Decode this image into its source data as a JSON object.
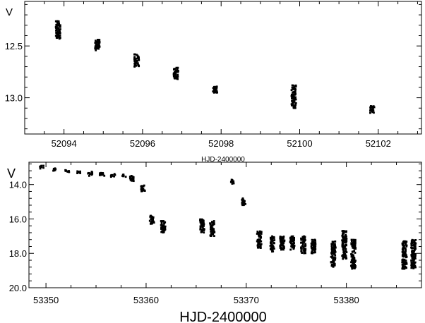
{
  "chart_data": [
    {
      "type": "scatter",
      "ylabel": "V",
      "xlabel": "HJD-2400000",
      "xlim": [
        52093.0,
        52103.1
      ],
      "ylim": [
        13.35,
        12.07
      ],
      "y_inverted": true,
      "xticks": [
        52094,
        52096,
        52098,
        52100,
        52102
      ],
      "yticks": [
        12.5,
        13.0
      ],
      "ytick_labels": [
        "12.5",
        "13.0"
      ],
      "grid": false,
      "clusters": [
        {
          "x": 52093.85,
          "y_top": 12.26,
          "y_bottom": 12.43
        },
        {
          "x": 52094.85,
          "y_top": 12.42,
          "y_bottom": 12.55
        },
        {
          "x": 52095.85,
          "y_top": 12.58,
          "y_bottom": 12.7
        },
        {
          "x": 52096.85,
          "y_top": 12.71,
          "y_bottom": 12.82
        },
        {
          "x": 52097.85,
          "y_top": 12.89,
          "y_bottom": 12.96
        },
        {
          "x": 52099.85,
          "y_top": 12.88,
          "y_bottom": 13.1
        },
        {
          "x": 52101.85,
          "y_top": 13.08,
          "y_bottom": 13.15
        }
      ]
    },
    {
      "type": "scatter",
      "ylabel": "V",
      "xlabel": "HJD-2400000",
      "xlim": [
        53348.3,
        53387.5
      ],
      "ylim": [
        20.0,
        12.7
      ],
      "y_inverted": true,
      "xticks": [
        53350,
        53360,
        53370,
        53380
      ],
      "yticks": [
        14.0,
        16.0,
        18.0,
        20.0
      ],
      "ytick_labels": [
        "14.0",
        "16.0",
        "18.0",
        "20.0"
      ],
      "grid": false,
      "clusters": [
        {
          "x": 53349.6,
          "y_top": 12.9,
          "y_bottom": 13.1
        },
        {
          "x": 53350.9,
          "y_top": 13.05,
          "y_bottom": 13.2
        },
        {
          "x": 53352.1,
          "y_top": 13.15,
          "y_bottom": 13.3
        },
        {
          "x": 53353.3,
          "y_top": 13.2,
          "y_bottom": 13.35
        },
        {
          "x": 53354.4,
          "y_top": 13.25,
          "y_bottom": 13.5
        },
        {
          "x": 53355.6,
          "y_top": 13.3,
          "y_bottom": 13.5
        },
        {
          "x": 53356.7,
          "y_top": 13.35,
          "y_bottom": 13.55
        },
        {
          "x": 53357.8,
          "y_top": 13.4,
          "y_bottom": 13.55
        },
        {
          "x": 53358.6,
          "y_top": 13.5,
          "y_bottom": 13.8
        },
        {
          "x": 53359.7,
          "y_top": 14.05,
          "y_bottom": 14.4
        },
        {
          "x": 53360.6,
          "y_top": 15.8,
          "y_bottom": 16.3
        },
        {
          "x": 53361.7,
          "y_top": 16.1,
          "y_bottom": 16.8
        },
        {
          "x": 53365.6,
          "y_top": 16.0,
          "y_bottom": 16.8
        },
        {
          "x": 53366.6,
          "y_top": 16.1,
          "y_bottom": 17.0
        },
        {
          "x": 53368.7,
          "y_top": 13.7,
          "y_bottom": 13.95
        },
        {
          "x": 53369.7,
          "y_top": 14.8,
          "y_bottom": 15.2
        },
        {
          "x": 53371.3,
          "y_top": 16.7,
          "y_bottom": 17.7
        },
        {
          "x": 53372.6,
          "y_top": 17.0,
          "y_bottom": 17.9
        },
        {
          "x": 53373.6,
          "y_top": 17.0,
          "y_bottom": 17.8
        },
        {
          "x": 53374.6,
          "y_top": 17.0,
          "y_bottom": 17.8
        },
        {
          "x": 53375.7,
          "y_top": 17.0,
          "y_bottom": 18.0
        },
        {
          "x": 53376.7,
          "y_top": 17.2,
          "y_bottom": 18.0
        },
        {
          "x": 53378.7,
          "y_top": 17.3,
          "y_bottom": 18.8
        },
        {
          "x": 53379.8,
          "y_top": 16.7,
          "y_bottom": 18.4
        },
        {
          "x": 53380.7,
          "y_top": 17.2,
          "y_bottom": 18.9
        },
        {
          "x": 53385.8,
          "y_top": 17.3,
          "y_bottom": 18.9
        },
        {
          "x": 53386.7,
          "y_top": 17.2,
          "y_bottom": 18.9
        }
      ]
    }
  ]
}
